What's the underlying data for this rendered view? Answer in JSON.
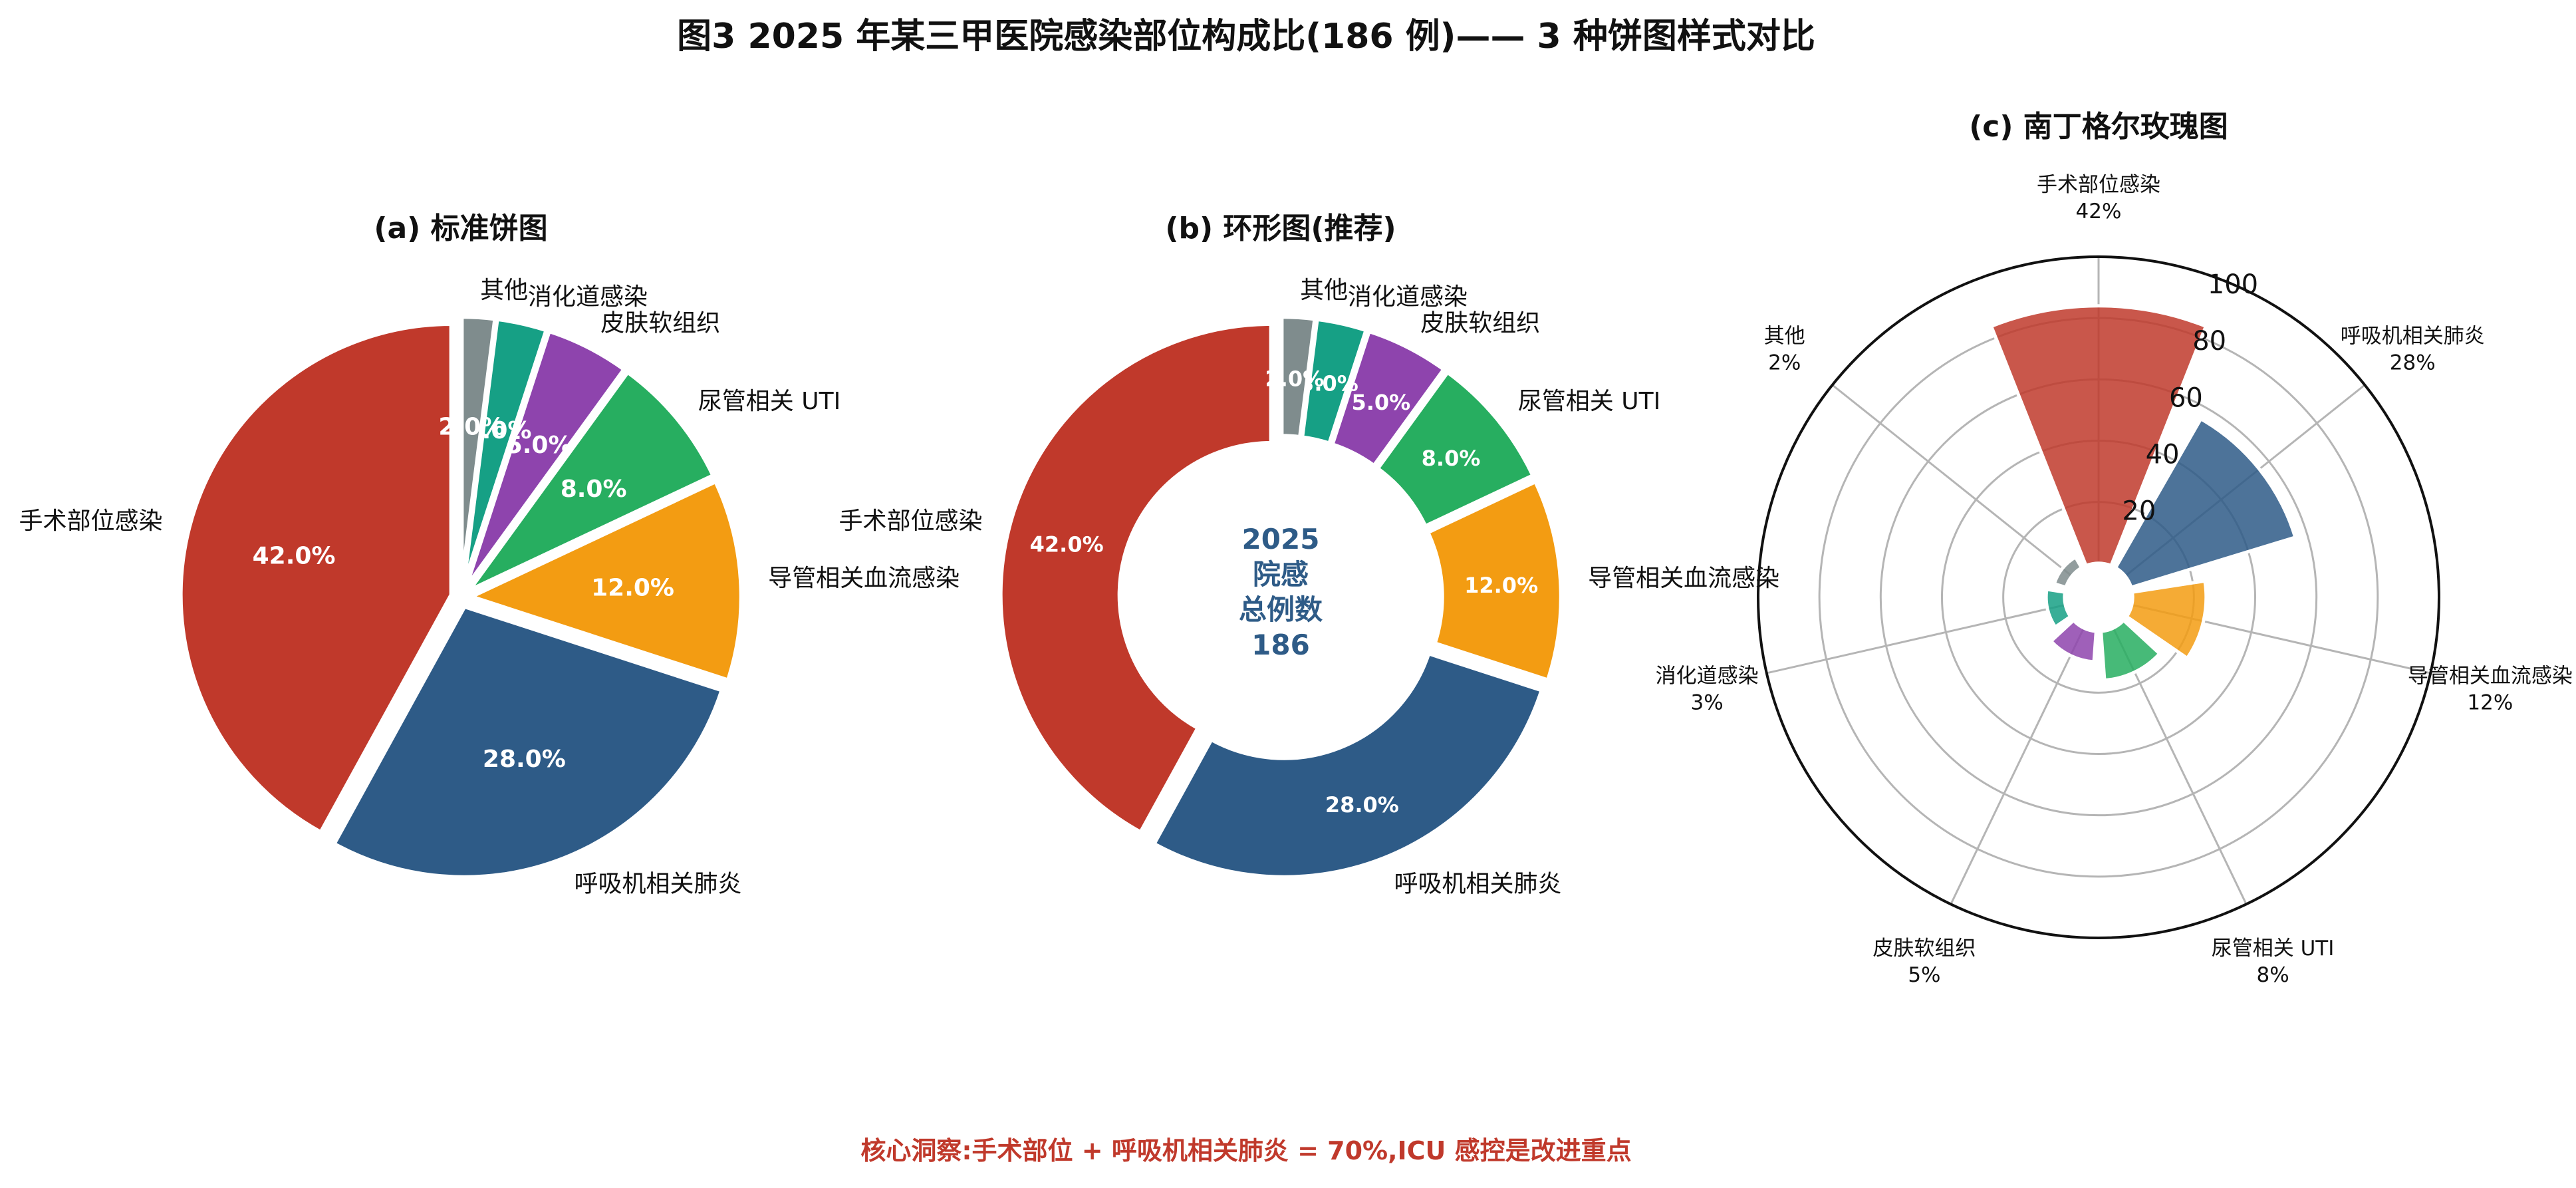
{
  "figure_title": "图3 2025 年某三甲医院感染部位构成比(186 例)—— 3 种饼图样式对比",
  "insight": "核心洞察:手术部位 + 呼吸机相关肺炎 = 70%,ICU 感控是改进重点",
  "colors": {
    "insight": "#c0392b",
    "center_text": "#2e5b87"
  },
  "chart_data": [
    {
      "type": "pie",
      "title": "(a) 标准饼图",
      "categories": [
        "手术部位感染",
        "呼吸机相关肺炎",
        "导管相关血流感染",
        "尿管相关 UTI",
        "皮肤软组织",
        "消化道感染",
        "其他"
      ],
      "values": [
        42.0,
        28.0,
        12.0,
        8.0,
        5.0,
        3.0,
        2.0
      ],
      "value_labels": [
        "42.0%",
        "28.0%",
        "12.0%",
        "8.0%",
        "5.0%",
        "3.0%",
        "2.0%"
      ],
      "colors": [
        "#c0392b",
        "#2e5b87",
        "#f39c12",
        "#27ae60",
        "#8e44ad",
        "#16a085",
        "#7f8c8d"
      ]
    },
    {
      "type": "pie",
      "subtype": "donut",
      "title": "(b) 环形图(推荐)",
      "categories": [
        "手术部位感染",
        "呼吸机相关肺炎",
        "导管相关血流感染",
        "尿管相关 UTI",
        "皮肤软组织",
        "消化道感染",
        "其他"
      ],
      "values": [
        42.0,
        28.0,
        12.0,
        8.0,
        5.0,
        3.0,
        2.0
      ],
      "value_labels": [
        "42.0%",
        "28.0%",
        "12.0%",
        "8.0%",
        "5.0%",
        "3.0%",
        "2.0%"
      ],
      "center_lines": [
        "2025",
        "院感",
        "总例数",
        "186"
      ],
      "colors": [
        "#c0392b",
        "#2e5b87",
        "#f39c12",
        "#27ae60",
        "#8e44ad",
        "#16a085",
        "#7f8c8d"
      ]
    },
    {
      "type": "rose",
      "title": "(c) 南丁格尔玫瑰图",
      "categories": [
        "手术部位感染",
        "呼吸机相关肺炎",
        "导管相关血流感染",
        "尿管相关 UTI",
        "皮肤软组织",
        "消化道感染",
        "其他"
      ],
      "values": [
        42,
        28,
        12,
        8,
        5,
        3,
        2
      ],
      "bar_lengths": [
        84,
        56,
        24,
        16,
        10,
        6,
        4
      ],
      "value_labels": [
        "42%",
        "28%",
        "12%",
        "8%",
        "5%",
        "3%",
        "2%"
      ],
      "r_ticks": [
        20,
        40,
        60,
        80,
        100
      ],
      "rlim": [
        0,
        100
      ],
      "grid": true,
      "colors": [
        "#c0392b",
        "#2e5b87",
        "#f39c12",
        "#27ae60",
        "#8e44ad",
        "#16a085",
        "#7f8c8d"
      ]
    }
  ]
}
